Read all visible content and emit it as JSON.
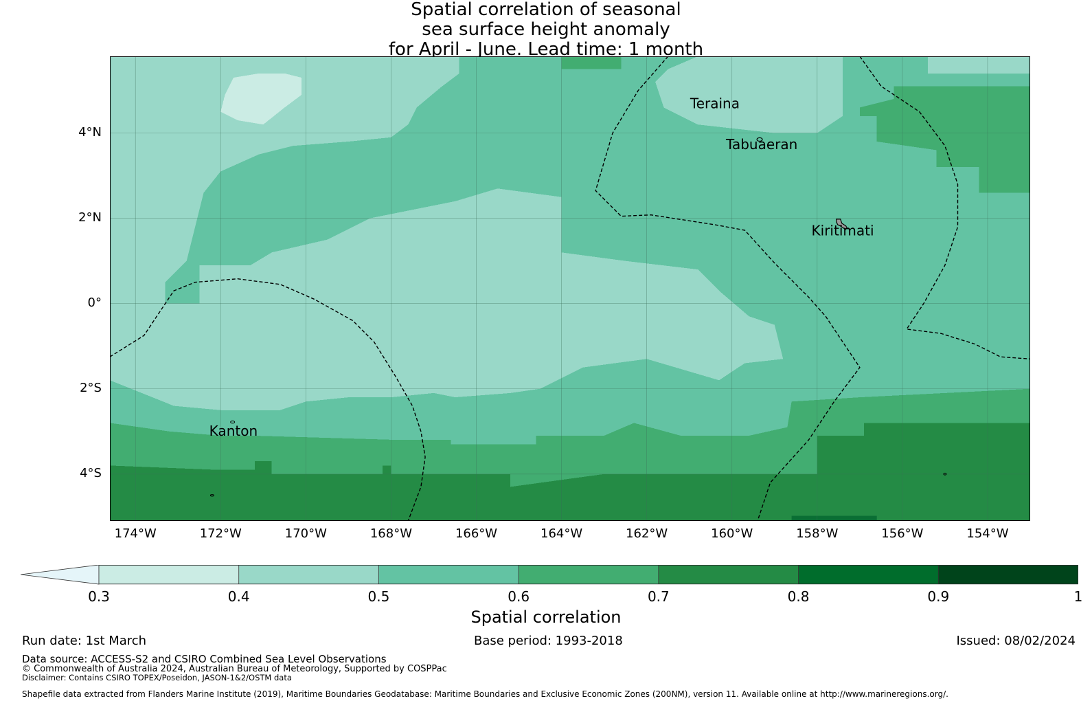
{
  "title": {
    "line1": "Spatial correlation of seasonal",
    "line2": "sea surface height anomaly",
    "line3": "for April - June. Lead time: 1 month"
  },
  "map": {
    "lon_range": [
      -174.6,
      -153.0
    ],
    "lat_range": [
      -5.1,
      5.8
    ],
    "lat_ticks": [
      {
        "lat": 4,
        "label": "4°N"
      },
      {
        "lat": 2,
        "label": "2°N"
      },
      {
        "lat": 0,
        "label": "0°"
      },
      {
        "lat": -2,
        "label": "2°S"
      },
      {
        "lat": -4,
        "label": "4°S"
      }
    ],
    "lon_ticks": [
      {
        "lon": -174,
        "label": "174°W"
      },
      {
        "lon": -172,
        "label": "172°W"
      },
      {
        "lon": -170,
        "label": "170°W"
      },
      {
        "lon": -168,
        "label": "168°W"
      },
      {
        "lon": -166,
        "label": "166°W"
      },
      {
        "lon": -164,
        "label": "164°W"
      },
      {
        "lon": -162,
        "label": "162°W"
      },
      {
        "lon": -160,
        "label": "160°W"
      },
      {
        "lon": -158,
        "label": "158°W"
      },
      {
        "lon": -156,
        "label": "156°W"
      },
      {
        "lon": -154,
        "label": "154°W"
      }
    ],
    "places": [
      {
        "name": "Teraina",
        "lon": -160.4,
        "lat": 4.58
      },
      {
        "name": "Tabuaeran",
        "lon": -159.3,
        "lat": 3.62
      },
      {
        "name": "Kiritimati",
        "lon": -157.4,
        "lat": 1.6
      },
      {
        "name": "Kanton",
        "lon": -171.7,
        "lat": -3.1
      }
    ],
    "colors": {
      "c03": "#cbece4",
      "c04": "#99d8c8",
      "c05": "#63c3a3",
      "c06": "#42ad71",
      "c07": "#248b45"
    }
  },
  "colorbar": {
    "title": "Spatial correlation",
    "ticks": [
      "0.3",
      "0.4",
      "0.5",
      "0.6",
      "0.7",
      "0.8",
      "0.9",
      "1"
    ],
    "colors": [
      "#cbece4",
      "#99d8c8",
      "#63c3a3",
      "#42ad71",
      "#248b45",
      "#006d2c",
      "#00441b"
    ],
    "extend_color": "#e5f5f9"
  },
  "footer": {
    "run_date": "Run date: 1st March",
    "base_period": "Base period: 1993-2018",
    "issued": "Issued: 08/02/2024",
    "data_source": "Data source: ACCESS-S2 and CSIRO Combined Sea Level Observations",
    "copyright": "© Commonwealth of Australia 2024, Australian Bureau of Meteorology, Supported by COSPPac",
    "disclaimer": "Disclaimer: Contains CSIRO TOPEX/Poseidon, JASON-1&2/OSTM data",
    "shapefile": "Shapefile data extracted from Flanders Marine Institute (2019), Maritime Boundaries Geodatabase: Maritime Boundaries and Exclusive Economic Zones (200NM), version 11. Available online at http://www.marineregions.org/."
  }
}
